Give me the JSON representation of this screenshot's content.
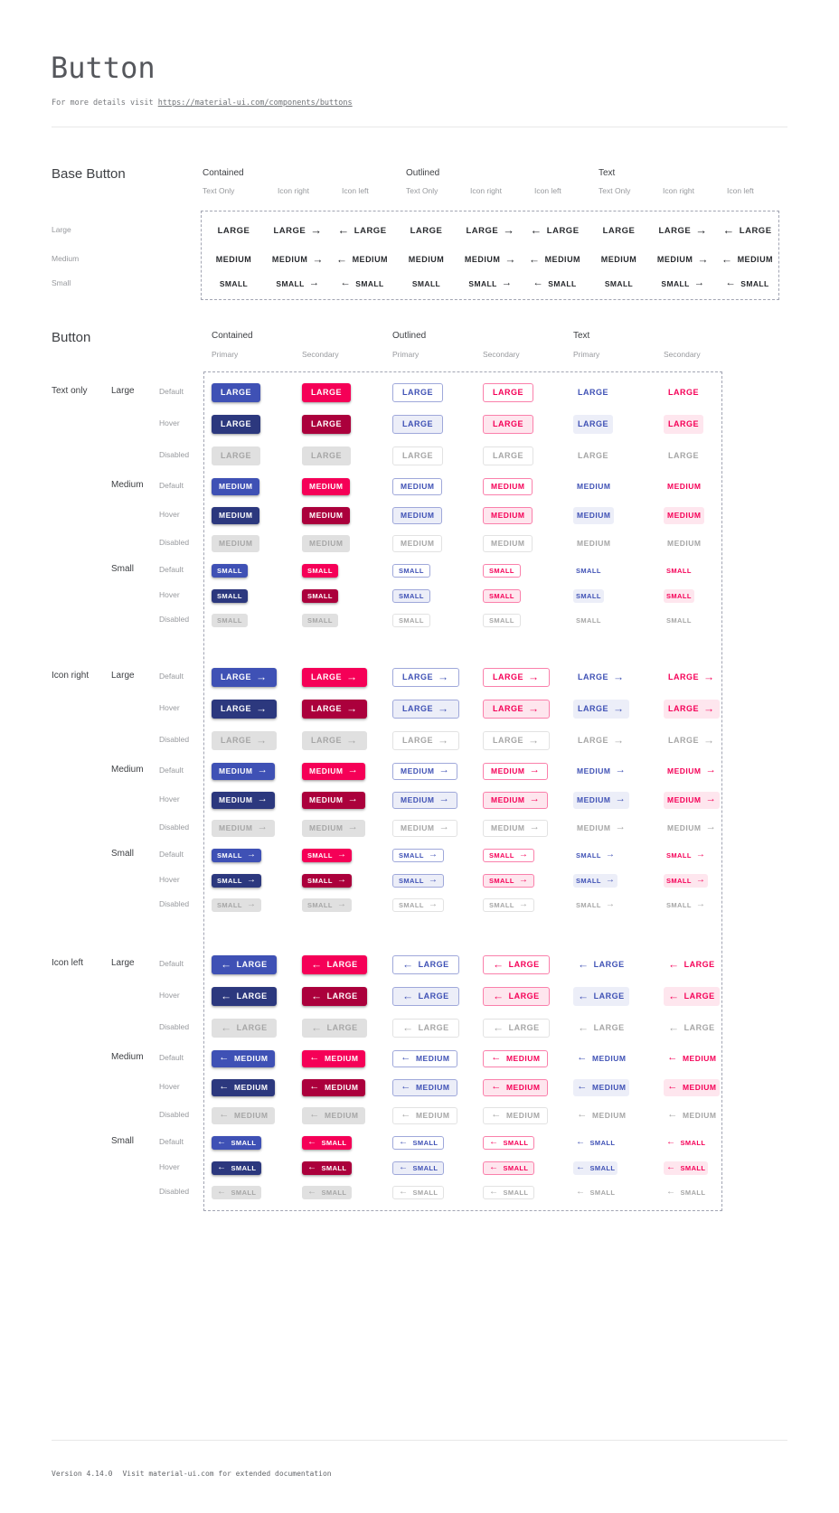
{
  "page": {
    "title": "Button",
    "subtitle_prefix": "For more details visit ",
    "subtitle_link": "https://material-ui.com/components/buttons",
    "footer_version": "Version 4.14.0",
    "footer_note": "Visit material-ui.com for extended documentation"
  },
  "colors": {
    "primary": "#3F51B5",
    "primary_hover": "#2C387E",
    "secondary": "#F50057",
    "secondary_hover": "#AB003C",
    "disabled_bg": "#E0E0E0",
    "disabled_text": "#A6A6A6",
    "primary_border": "#9FA8DA",
    "primary_tint": "#ECEEF8",
    "secondary_border": "#FA80AB",
    "secondary_tint": "#FEE6EE",
    "outlined_disabled_border": "#E2E2E2"
  },
  "icons": {
    "arrow_right": "→",
    "arrow_left": "←"
  },
  "base_section": {
    "heading": "Base Button",
    "group_headers": [
      "Contained",
      "Outlined",
      "Text"
    ],
    "sub_headers": [
      "Text Only",
      "Icon right",
      "Icon left"
    ],
    "row_labels": [
      "Large",
      "Medium",
      "Small"
    ],
    "button_labels": [
      "LARGE",
      "MEDIUM",
      "SMALL"
    ]
  },
  "button_section": {
    "heading": "Button",
    "group_headers": [
      "Contained",
      "Outlined",
      "Text"
    ],
    "sub_headers": [
      "Primary",
      "Secondary"
    ],
    "icon_groups": [
      {
        "label": "Text only",
        "icon": "none"
      },
      {
        "label": "Icon right",
        "icon": "right"
      },
      {
        "label": "Icon left",
        "icon": "left"
      }
    ],
    "size_labels": [
      "Large",
      "Medium",
      "Small"
    ],
    "state_labels": [
      "Default",
      "Hover",
      "Disabled"
    ],
    "button_labels": [
      "LARGE",
      "MEDIUM",
      "SMALL"
    ]
  }
}
